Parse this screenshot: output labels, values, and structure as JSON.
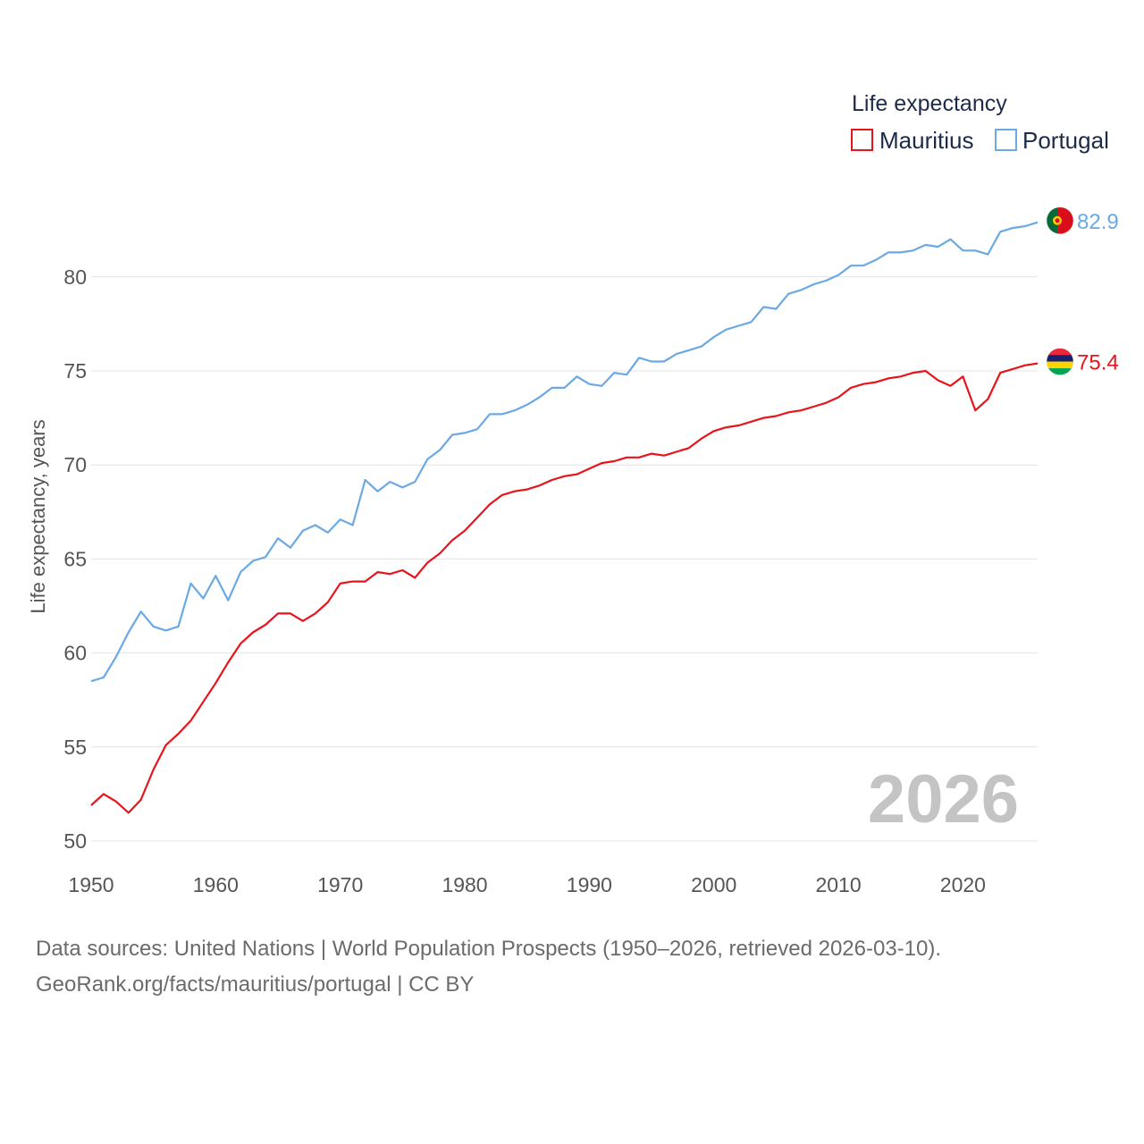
{
  "legend": {
    "title": "Life expectancy",
    "items": [
      {
        "name": "Mauritius",
        "color": "#e8141b"
      },
      {
        "name": "Portugal",
        "color": "#6aa9e4"
      }
    ]
  },
  "watermark_year": "2026",
  "footer": {
    "line1": "Data sources: United Nations | World Population Prospects (1950–2026, retrieved 2026-03-10).",
    "line2": "GeoRank.org/facts/mauritius/portugal | CC BY"
  },
  "chart_data": {
    "type": "line",
    "title": "Life expectancy",
    "xlabel": "",
    "ylabel": "Life expectancy, years",
    "xlim": [
      1950,
      2026
    ],
    "ylim": [
      50,
      84
    ],
    "x_ticks": [
      1950,
      1960,
      1970,
      1980,
      1990,
      2000,
      2010,
      2020
    ],
    "y_ticks": [
      50,
      55,
      60,
      65,
      70,
      75,
      80
    ],
    "grid": true,
    "legend_position": "top-right",
    "x": [
      1950,
      1951,
      1952,
      1953,
      1954,
      1955,
      1956,
      1957,
      1958,
      1959,
      1960,
      1961,
      1962,
      1963,
      1964,
      1965,
      1966,
      1967,
      1968,
      1969,
      1970,
      1971,
      1972,
      1973,
      1974,
      1975,
      1976,
      1977,
      1978,
      1979,
      1980,
      1981,
      1982,
      1983,
      1984,
      1985,
      1986,
      1987,
      1988,
      1989,
      1990,
      1991,
      1992,
      1993,
      1994,
      1995,
      1996,
      1997,
      1998,
      1999,
      2000,
      2001,
      2002,
      2003,
      2004,
      2005,
      2006,
      2007,
      2008,
      2009,
      2010,
      2011,
      2012,
      2013,
      2014,
      2015,
      2016,
      2017,
      2018,
      2019,
      2020,
      2021,
      2022,
      2023,
      2024,
      2025,
      2026
    ],
    "series": [
      {
        "name": "Portugal",
        "color": "#6aa9e4",
        "end_label": "82.9",
        "flag": "portugal-flag",
        "values": [
          58.5,
          58.7,
          59.8,
          61.1,
          62.2,
          61.4,
          61.2,
          61.4,
          63.7,
          62.9,
          64.1,
          62.8,
          64.3,
          64.9,
          65.1,
          66.1,
          65.6,
          66.5,
          66.8,
          66.4,
          67.1,
          66.8,
          69.2,
          68.6,
          69.1,
          68.8,
          69.1,
          70.3,
          70.8,
          71.6,
          71.7,
          71.9,
          72.7,
          72.7,
          72.9,
          73.2,
          73.6,
          74.1,
          74.1,
          74.7,
          74.3,
          74.2,
          74.9,
          74.8,
          75.7,
          75.5,
          75.5,
          75.9,
          76.1,
          76.3,
          76.8,
          77.2,
          77.4,
          77.6,
          78.4,
          78.3,
          79.1,
          79.3,
          79.6,
          79.8,
          80.1,
          80.6,
          80.6,
          80.9,
          81.3,
          81.3,
          81.4,
          81.7,
          81.6,
          82.0,
          81.4,
          81.4,
          81.2,
          82.4,
          82.6,
          82.7,
          82.9
        ]
      },
      {
        "name": "Mauritius",
        "color": "#e8141b",
        "end_label": "75.4",
        "flag": "mauritius-flag",
        "values": [
          51.9,
          52.5,
          52.1,
          51.5,
          52.2,
          53.8,
          55.1,
          55.7,
          56.4,
          57.4,
          58.4,
          59.5,
          60.5,
          61.1,
          61.5,
          62.1,
          62.1,
          61.7,
          62.1,
          62.7,
          63.7,
          63.8,
          63.8,
          64.3,
          64.2,
          64.4,
          64.0,
          64.8,
          65.3,
          66.0,
          66.5,
          67.2,
          67.9,
          68.4,
          68.6,
          68.7,
          68.9,
          69.2,
          69.4,
          69.5,
          69.8,
          70.1,
          70.2,
          70.4,
          70.4,
          70.6,
          70.5,
          70.7,
          70.9,
          71.4,
          71.8,
          72.0,
          72.1,
          72.3,
          72.5,
          72.6,
          72.8,
          72.9,
          73.1,
          73.3,
          73.6,
          74.1,
          74.3,
          74.4,
          74.6,
          74.7,
          74.9,
          75.0,
          74.5,
          74.2,
          74.7,
          72.9,
          73.5,
          74.9,
          75.1,
          75.3,
          75.4
        ]
      }
    ]
  }
}
